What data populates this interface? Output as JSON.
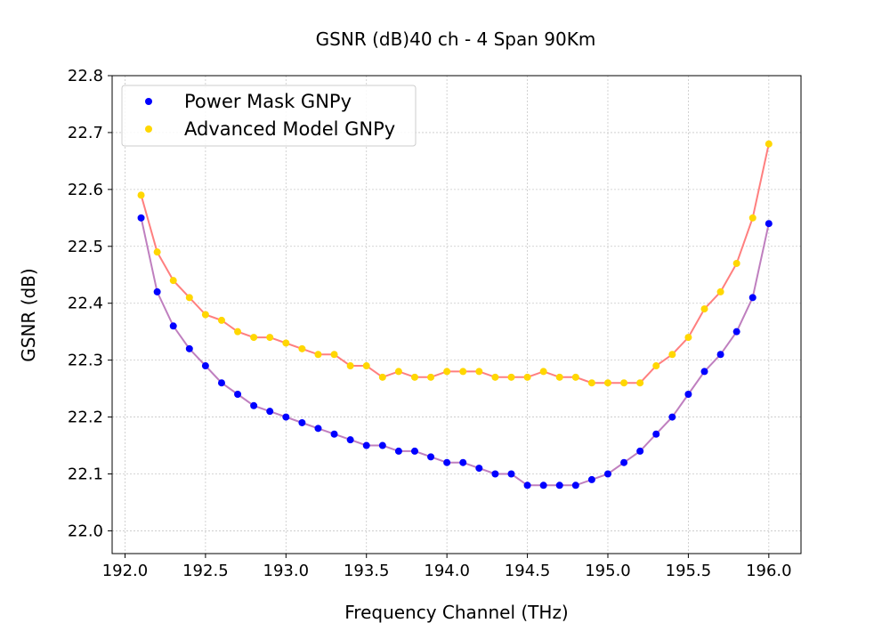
{
  "chart_data": {
    "type": "line",
    "title": "GSNR (dB)40 ch - 4 Span 90Km",
    "xlabel": "Frequency Channel (THz)",
    "ylabel": "GSNR (dB)",
    "xlim": [
      191.92,
      196.2
    ],
    "ylim": [
      21.96,
      22.8
    ],
    "xticks": [
      "192.0",
      "192.5",
      "193.0",
      "193.5",
      "194.0",
      "194.5",
      "195.0",
      "195.5",
      "196.0"
    ],
    "yticks": [
      "22.0",
      "22.1",
      "22.2",
      "22.3",
      "22.4",
      "22.5",
      "22.6",
      "22.7",
      "22.8"
    ],
    "grid": true,
    "legend_position": "top-left",
    "x": [
      192.1,
      192.2,
      192.3,
      192.4,
      192.5,
      192.6,
      192.7,
      192.8,
      192.9,
      193.0,
      193.1,
      193.2,
      193.3,
      193.4,
      193.5,
      193.6,
      193.7,
      193.8,
      193.9,
      194.0,
      194.1,
      194.2,
      194.3,
      194.4,
      194.5,
      194.6,
      194.7,
      194.8,
      194.9,
      195.0,
      195.1,
      195.2,
      195.3,
      195.4,
      195.5,
      195.6,
      195.7,
      195.8,
      195.9,
      196.0
    ],
    "series": [
      {
        "name": "Power Mask GNPy",
        "marker_color": "#0000ff",
        "line_color": "#bf7fbf",
        "values": [
          22.55,
          22.42,
          22.36,
          22.32,
          22.29,
          22.26,
          22.24,
          22.22,
          22.21,
          22.2,
          22.19,
          22.18,
          22.17,
          22.16,
          22.15,
          22.15,
          22.14,
          22.14,
          22.13,
          22.12,
          22.12,
          22.11,
          22.1,
          22.1,
          22.08,
          22.08,
          22.08,
          22.08,
          22.09,
          22.1,
          22.12,
          22.14,
          22.17,
          22.2,
          22.24,
          22.28,
          22.31,
          22.35,
          22.41,
          22.54
        ]
      },
      {
        "name": "Advanced Model GNPy",
        "marker_color": "#ffd700",
        "line_color": "#ff7f7f",
        "values": [
          22.59,
          22.49,
          22.44,
          22.41,
          22.38,
          22.37,
          22.35,
          22.34,
          22.34,
          22.33,
          22.32,
          22.31,
          22.31,
          22.29,
          22.29,
          22.27,
          22.28,
          22.27,
          22.27,
          22.28,
          22.28,
          22.28,
          22.27,
          22.27,
          22.27,
          22.28,
          22.27,
          22.27,
          22.26,
          22.26,
          22.26,
          22.26,
          22.29,
          22.31,
          22.34,
          22.39,
          22.42,
          22.47,
          22.55,
          22.68
        ]
      }
    ]
  }
}
